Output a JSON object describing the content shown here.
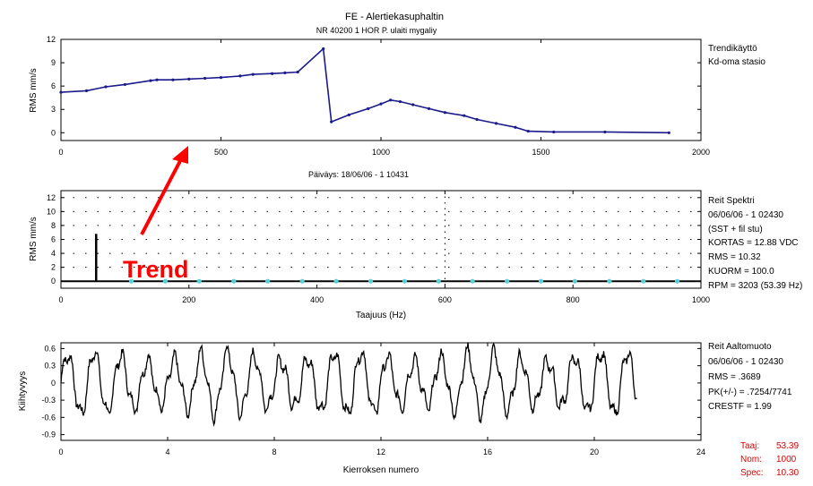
{
  "header": {
    "title": "FE - Alertiekasuphaltin",
    "subtitle": "NR 40200 1 HOR P. ulaiti mygaliy"
  },
  "annotation": {
    "label": "Trend",
    "arrow_color": "#ff0000"
  },
  "colors": {
    "trend_line": "#1a1a8c",
    "spectrum_dot": "#5ad0d8",
    "waveform": "#000000",
    "annotation": "#ff0000",
    "axis": "#000000"
  },
  "chart_data": [
    {
      "id": "trend",
      "type": "line",
      "title": "",
      "ylabel": "RMS mm/s",
      "xlabel": "",
      "xlim": [
        0,
        2000
      ],
      "ylim": [
        -1,
        12
      ],
      "xticks": [
        0,
        500,
        1000,
        1500,
        2000
      ],
      "xtick_labels": [
        "0",
        "500",
        "1000",
        "1500",
        "2000"
      ],
      "yticks": [
        0,
        3,
        6,
        9,
        12
      ],
      "ytick_labels": [
        "0",
        "3",
        "6",
        "9",
        "12"
      ],
      "x": [
        0,
        80,
        140,
        200,
        280,
        300,
        350,
        400,
        450,
        500,
        560,
        600,
        660,
        700,
        740,
        820,
        845,
        900,
        960,
        1000,
        1030,
        1060,
        1100,
        1150,
        1200,
        1260,
        1300,
        1360,
        1420,
        1460,
        1540,
        1700,
        1900
      ],
      "y": [
        5.2,
        5.4,
        5.9,
        6.2,
        6.7,
        6.8,
        6.8,
        6.9,
        7.0,
        7.1,
        7.3,
        7.5,
        7.6,
        7.7,
        7.8,
        10.8,
        1.4,
        2.3,
        3.1,
        3.7,
        4.2,
        4.0,
        3.6,
        3.1,
        2.6,
        2.2,
        1.7,
        1.2,
        0.7,
        0.2,
        0.1,
        0.1,
        0.0
      ],
      "info": [
        "Trendikäyttö",
        "Kd-oma stasio"
      ]
    },
    {
      "id": "spectrum",
      "type": "bar",
      "title": "Päiväys: 18/06/06 - 1 10431",
      "ylabel": "RMS mm/s",
      "xlabel": "Taajuus (Hz)",
      "xlim": [
        0,
        1000
      ],
      "ylim": [
        -1,
        13
      ],
      "xticks": [
        0,
        200,
        400,
        600,
        800,
        1000
      ],
      "xtick_labels": [
        "0",
        "200",
        "400",
        "600",
        "800",
        "1000"
      ],
      "yticks": [
        0,
        2,
        4,
        6,
        8,
        10,
        12
      ],
      "ytick_labels": [
        "0",
        "2",
        "4",
        "6",
        "8",
        "10",
        "12"
      ],
      "peak": {
        "x": 55,
        "y": 6.8
      },
      "markers": [
        110,
        163,
        216,
        270,
        323,
        377,
        430,
        484,
        537,
        590,
        643,
        697,
        750,
        803,
        857,
        910,
        963
      ],
      "info": [
        "Reit Spektri",
        "06/06/06 - 1 02430",
        "(SST + fil stu)",
        "KORTAS = 12.88 VDC",
        "RMS = 10.32",
        "KUORM = 100.0",
        "RPM = 3203 (53.39 Hz)"
      ]
    },
    {
      "id": "waveform",
      "type": "line",
      "title": "",
      "ylabel": "Kiihtyvyys",
      "xlabel": "Kierroksen numero",
      "xlim": [
        0,
        24
      ],
      "ylim": [
        -1,
        0.7
      ],
      "xticks": [
        0,
        4,
        8,
        12,
        16,
        20,
        24
      ],
      "xtick_labels": [
        "0",
        "4",
        "8",
        "12",
        "16",
        "20",
        "24"
      ],
      "yticks": [
        0.6,
        0.3,
        0,
        -0.3,
        -0.6,
        -0.9
      ],
      "ytick_labels": [
        "0.6",
        "0.3",
        "0",
        "-0.3",
        "-0.6",
        "-0.9"
      ],
      "cycles": 21.6,
      "amplitude": 0.55,
      "info": [
        "Reit Aaltomuoto",
        "06/06/06 - 1 02430",
        "RMS = .3689",
        "PK(+/-) = .7254/7741",
        "CRESTF = 1.99"
      ]
    }
  ],
  "footer": {
    "labels": [
      "Taaj:",
      "Nom:",
      "Spec:"
    ],
    "values": [
      "53.39",
      "1000",
      "10.30"
    ]
  }
}
